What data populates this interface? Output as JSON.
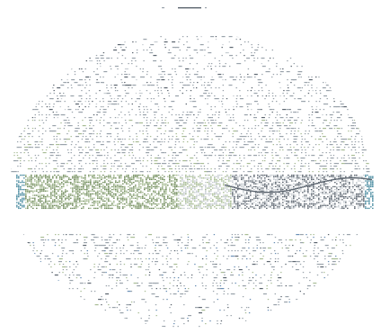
{
  "image": {
    "background": "#ffffff",
    "colors": {
      "ink": "#9aa3ab",
      "ink_dark": "#5d6670",
      "green": "#6f8a5a",
      "green_light": "#a9bd96",
      "teal": "#4f8fa3",
      "blue": "#6a8fb5",
      "grey": "#c7cdd2"
    },
    "labels": []
  }
}
